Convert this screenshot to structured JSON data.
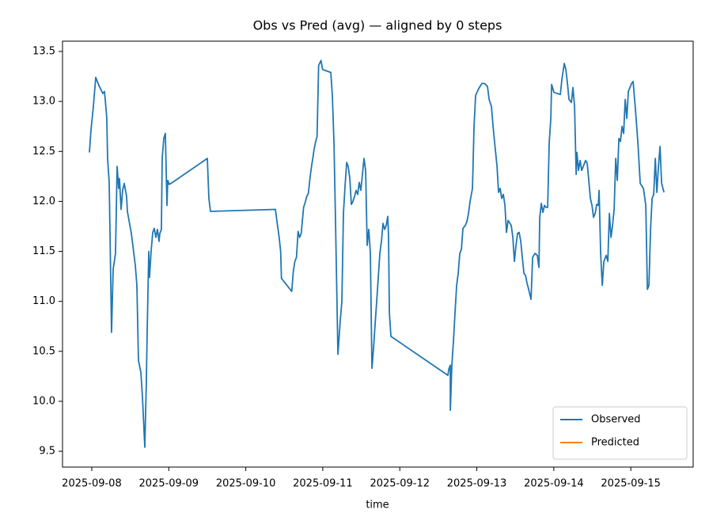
{
  "chart_data": {
    "type": "line",
    "title": "Obs vs Pred (avg) — aligned by 0 steps",
    "x_label": "time",
    "x": [
      "2025-09-07 23:16",
      "2025-09-07 23:45",
      "2025-09-08 00:30",
      "2025-09-08 01:14",
      "2025-09-08 02:13",
      "2025-09-08 03:27",
      "2025-09-08 03:57",
      "2025-09-08 04:12",
      "2025-09-08 04:41",
      "2025-09-08 04:56",
      "2025-09-08 05:26",
      "2025-09-08 06:10",
      "2025-09-08 06:40",
      "2025-09-08 07:24",
      "2025-09-08 07:54",
      "2025-09-08 08:23",
      "2025-09-08 08:38",
      "2025-09-08 09:08",
      "2025-09-08 09:37",
      "2025-09-08 10:07",
      "2025-09-08 10:51",
      "2025-09-08 11:06",
      "2025-09-08 12:20",
      "2025-09-08 13:34",
      "2025-09-08 14:04",
      "2025-09-08 14:33",
      "2025-09-08 15:18",
      "2025-09-08 15:47",
      "2025-09-08 16:32",
      "2025-09-08 17:01",
      "2025-09-08 17:16",
      "2025-09-08 17:46",
      "2025-09-08 18:00",
      "2025-09-08 18:30",
      "2025-09-08 19:00",
      "2025-09-08 19:29",
      "2025-09-08 19:59",
      "2025-09-08 20:28",
      "2025-09-08 20:58",
      "2025-09-08 21:13",
      "2025-09-08 21:42",
      "2025-09-08 21:57",
      "2025-09-08 22:27",
      "2025-09-08 22:56",
      "2025-09-08 23:26",
      "2025-09-08 23:41",
      "2025-09-09 00:10",
      "2025-09-09 01:10",
      "2025-09-09 12:01",
      "2025-09-09 12:30",
      "2025-09-09 13:00",
      "2025-09-10 09:14",
      "2025-09-10 09:53",
      "2025-09-10 10:22",
      "2025-09-10 10:52",
      "2025-09-10 11:07",
      "2025-09-10 14:19",
      "2025-09-10 14:49",
      "2025-09-10 15:18",
      "2025-09-10 15:48",
      "2025-09-10 16:18",
      "2025-09-10 16:47",
      "2025-09-10 17:17",
      "2025-09-10 18:01",
      "2025-09-10 18:31",
      "2025-09-10 19:00",
      "2025-09-10 19:30",
      "2025-09-10 20:00",
      "2025-09-10 20:29",
      "2025-09-10 20:59",
      "2025-09-10 21:14",
      "2025-09-10 21:43",
      "2025-09-10 22:13",
      "2025-09-10 22:42",
      "2025-09-10 23:27",
      "2025-09-10 23:56",
      "2025-09-11 02:30",
      "2025-09-11 02:59",
      "2025-09-11 03:29",
      "2025-09-11 03:58",
      "2025-09-11 04:43",
      "2025-09-11 05:27",
      "2025-09-11 05:57",
      "2025-09-11 06:26",
      "2025-09-11 06:56",
      "2025-09-11 07:26",
      "2025-09-11 07:55",
      "2025-09-11 08:25",
      "2025-09-11 08:54",
      "2025-09-11 09:24",
      "2025-09-11 09:54",
      "2025-09-11 10:23",
      "2025-09-11 10:53",
      "2025-09-11 11:22",
      "2025-09-11 11:52",
      "2025-09-11 12:51",
      "2025-09-11 13:21",
      "2025-09-11 13:50",
      "2025-09-11 14:20",
      "2025-09-11 14:50",
      "2025-09-11 15:19",
      "2025-09-11 15:49",
      "2025-09-11 16:18",
      "2025-09-11 16:48",
      "2025-09-11 17:18",
      "2025-09-11 17:47",
      "2025-09-11 18:17",
      "2025-09-11 18:46",
      "2025-09-11 19:16",
      "2025-09-11 19:46",
      "2025-09-11 20:15",
      "2025-09-11 20:30",
      "2025-09-11 20:45",
      "2025-09-11 21:14",
      "2025-09-12 15:00",
      "2025-09-12 15:15",
      "2025-09-12 15:44",
      "2025-09-12 15:45",
      "2025-09-12 16:14",
      "2025-09-12 16:44",
      "2025-09-12 17:13",
      "2025-09-12 17:43",
      "2025-09-12 18:12",
      "2025-09-12 18:42",
      "2025-09-12 19:12",
      "2025-09-12 19:41",
      "2025-09-12 20:26",
      "2025-09-12 20:55",
      "2025-09-12 21:25",
      "2025-09-12 21:54",
      "2025-09-12 22:39",
      "2025-09-12 23:08",
      "2025-09-12 23:38",
      "2025-09-13 00:37",
      "2025-09-13 01:36",
      "2025-09-13 02:21",
      "2025-09-13 03:20",
      "2025-09-13 03:50",
      "2025-09-13 04:34",
      "2025-09-13 05:04",
      "2025-09-13 05:33",
      "2025-09-13 06:18",
      "2025-09-13 06:47",
      "2025-09-13 07:17",
      "2025-09-13 07:46",
      "2025-09-13 08:16",
      "2025-09-13 08:46",
      "2025-09-13 09:15",
      "2025-09-13 09:45",
      "2025-09-13 10:44",
      "2025-09-13 11:14",
      "2025-09-13 11:43",
      "2025-09-13 12:13",
      "2025-09-13 12:42",
      "2025-09-13 13:12",
      "2025-09-13 13:42",
      "2025-09-13 14:11",
      "2025-09-13 14:41",
      "2025-09-13 15:10",
      "2025-09-13 15:40",
      "2025-09-13 16:10",
      "2025-09-13 16:54",
      "2025-09-13 17:24",
      "2025-09-13 18:08",
      "2025-09-13 18:52",
      "2025-09-13 19:22",
      "2025-09-13 19:37",
      "2025-09-13 20:06",
      "2025-09-13 20:36",
      "2025-09-13 21:06",
      "2025-09-13 21:35",
      "2025-09-13 22:05",
      "2025-09-13 22:34",
      "2025-09-13 23:04",
      "2025-09-13 23:19",
      "2025-09-14 00:03",
      "2025-09-14 02:02",
      "2025-09-14 02:31",
      "2025-09-14 03:16",
      "2025-09-14 03:45",
      "2025-09-14 04:15",
      "2025-09-14 04:44",
      "2025-09-14 05:29",
      "2025-09-14 05:58",
      "2025-09-14 06:28",
      "2025-09-14 06:58",
      "2025-09-14 07:12",
      "2025-09-14 07:42",
      "2025-09-14 08:12",
      "2025-09-14 08:41",
      "2025-09-14 09:11",
      "2025-09-14 09:55",
      "2025-09-14 10:25",
      "2025-09-14 10:54",
      "2025-09-14 11:24",
      "2025-09-14 11:54",
      "2025-09-14 12:23",
      "2025-09-14 12:53",
      "2025-09-14 13:22",
      "2025-09-14 13:52",
      "2025-09-14 14:07",
      "2025-09-14 14:36",
      "2025-09-14 15:06",
      "2025-09-14 15:36",
      "2025-09-14 16:20",
      "2025-09-14 16:50",
      "2025-09-14 17:19",
      "2025-09-14 17:49",
      "2025-09-14 18:18",
      "2025-09-14 18:48",
      "2025-09-14 19:18",
      "2025-09-14 19:47",
      "2025-09-14 20:17",
      "2025-09-14 20:46",
      "2025-09-14 21:16",
      "2025-09-14 21:46",
      "2025-09-14 22:15",
      "2025-09-14 22:45",
      "2025-09-14 23:14",
      "2025-09-15 00:14",
      "2025-09-15 00:43",
      "2025-09-15 01:28",
      "2025-09-15 02:12",
      "2025-09-15 02:56",
      "2025-09-15 03:56",
      "2025-09-15 04:40",
      "2025-09-15 05:10",
      "2025-09-15 05:39",
      "2025-09-15 06:09",
      "2025-09-15 06:38",
      "2025-09-15 07:08",
      "2025-09-15 07:38",
      "2025-09-15 08:07",
      "2025-09-15 08:37",
      "2025-09-15 09:06",
      "2025-09-15 09:36",
      "2025-09-15 10:20"
    ],
    "series": [
      {
        "name": "Observed",
        "color": "#1f77b4",
        "values": [
          12.49,
          12.71,
          12.95,
          13.24,
          13.16,
          13.08,
          13.1,
          13.02,
          12.83,
          12.43,
          12.19,
          10.69,
          11.32,
          11.48,
          12.35,
          12.13,
          12.23,
          11.92,
          12.11,
          12.18,
          12.05,
          11.9,
          11.68,
          11.36,
          11.16,
          10.41,
          10.29,
          10.05,
          9.54,
          10.21,
          10.69,
          11.5,
          11.24,
          11.5,
          11.69,
          11.73,
          11.64,
          11.72,
          11.6,
          11.68,
          11.72,
          12.43,
          12.63,
          12.68,
          11.96,
          12.21,
          12.17,
          12.19,
          12.43,
          12.03,
          11.9,
          11.92,
          11.76,
          11.65,
          11.5,
          11.23,
          11.1,
          11.3,
          11.4,
          11.44,
          11.7,
          11.64,
          11.68,
          11.94,
          11.99,
          12.05,
          12.08,
          12.23,
          12.35,
          12.45,
          12.51,
          12.59,
          12.65,
          13.36,
          13.41,
          13.32,
          13.29,
          13.06,
          12.59,
          11.8,
          10.47,
          10.81,
          11.0,
          11.88,
          12.15,
          12.39,
          12.35,
          12.23,
          11.97,
          12.0,
          12.05,
          12.11,
          12.07,
          12.19,
          12.11,
          12.43,
          12.31,
          11.56,
          11.72,
          11.48,
          10.33,
          10.53,
          10.77,
          11.0,
          11.24,
          11.48,
          11.6,
          11.78,
          11.72,
          11.76,
          11.85,
          11.64,
          10.89,
          10.65,
          10.26,
          10.32,
          10.36,
          9.91,
          10.37,
          10.61,
          10.89,
          11.16,
          11.28,
          11.48,
          11.52,
          11.73,
          11.76,
          11.8,
          11.88,
          12.0,
          12.13,
          12.75,
          13.06,
          13.13,
          13.18,
          13.18,
          13.15,
          13.02,
          12.95,
          12.75,
          12.59,
          12.35,
          12.09,
          12.13,
          12.03,
          12.07,
          11.96,
          11.69,
          11.81,
          11.76,
          11.64,
          11.4,
          11.56,
          11.68,
          11.69,
          11.6,
          11.44,
          11.28,
          11.26,
          11.18,
          11.12,
          11.02,
          11.44,
          11.48,
          11.46,
          11.34,
          11.84,
          11.98,
          11.89,
          11.96,
          11.94,
          11.94,
          12.59,
          12.83,
          13.17,
          13.09,
          13.07,
          13.22,
          13.38,
          13.32,
          13.18,
          13.02,
          12.99,
          13.14,
          12.95,
          12.27,
          12.49,
          12.31,
          12.41,
          12.31,
          12.35,
          12.41,
          12.38,
          12.21,
          12.03,
          11.96,
          11.84,
          11.88,
          11.97,
          11.96,
          12.11,
          11.48,
          11.16,
          11.4,
          11.46,
          11.4,
          11.88,
          11.64,
          11.76,
          11.92,
          12.43,
          12.21,
          12.63,
          12.6,
          12.75,
          12.68,
          13.02,
          12.83,
          13.1,
          13.18,
          13.2,
          12.91,
          12.59,
          12.18,
          12.13,
          11.96,
          11.12,
          11.16,
          11.72,
          12.03,
          12.07,
          12.43,
          12.09,
          12.35,
          12.55,
          12.18,
          12.09
        ]
      },
      {
        "name": "Predicted",
        "color": "#ff7f0e",
        "values": [
          null,
          null,
          null,
          null,
          null,
          null,
          null,
          null,
          null,
          null,
          null,
          null,
          null,
          null,
          null,
          null,
          null,
          null,
          null,
          null,
          null,
          null,
          null,
          null,
          null,
          null,
          null,
          null,
          null,
          null,
          null,
          null,
          null,
          null,
          null,
          null,
          null,
          null,
          null,
          null,
          null,
          null,
          null,
          null,
          null,
          null,
          null,
          null,
          null,
          null,
          null,
          null,
          null,
          null,
          null,
          null,
          null,
          null,
          null,
          null,
          null,
          null,
          null,
          null,
          null,
          null,
          null,
          null,
          null,
          null,
          null,
          null,
          null,
          null,
          null,
          null,
          null,
          null,
          null,
          null,
          null,
          null,
          null,
          null,
          null,
          null,
          null,
          null,
          null,
          null,
          null,
          null,
          null,
          null,
          null,
          null,
          null,
          null,
          null,
          null,
          null,
          null,
          null,
          null,
          null,
          null,
          null,
          null,
          null,
          null,
          null,
          null,
          null,
          null,
          null,
          null,
          null,
          null,
          null,
          null,
          null,
          null,
          null,
          null,
          null,
          null,
          null,
          null,
          null,
          null,
          null,
          null,
          null,
          null,
          null,
          null,
          null,
          null,
          null,
          null,
          null,
          null,
          null,
          null,
          null,
          null,
          null,
          null,
          null,
          null,
          null,
          null,
          null,
          null,
          null,
          null,
          null,
          null,
          null,
          null,
          null,
          null,
          null,
          null,
          null,
          null,
          null,
          null,
          null,
          null,
          null,
          null,
          null,
          null,
          null,
          null,
          null,
          null,
          null,
          null,
          null,
          null,
          null,
          null,
          null,
          null,
          null,
          null,
          null,
          null,
          null,
          null,
          null,
          null,
          null,
          null,
          null,
          null,
          null,
          null,
          null,
          null,
          null,
          null,
          null,
          null,
          null,
          null,
          null,
          null,
          null,
          null,
          null,
          null,
          null,
          null,
          null,
          null,
          null,
          null,
          null,
          null,
          null,
          null,
          null,
          null,
          null,
          null,
          null,
          null,
          null,
          null,
          null,
          null,
          null,
          null,
          null
        ]
      }
    ],
    "xlim": [
      "2025-09-07 14:53",
      "2025-09-15 19:26"
    ],
    "xticks": [
      "2025-09-08",
      "2025-09-09",
      "2025-09-10",
      "2025-09-11",
      "2025-09-12",
      "2025-09-13",
      "2025-09-14",
      "2025-09-15"
    ],
    "ylim": [
      9.342,
      13.603
    ],
    "yticks": [
      9.5,
      {
        "value": 10,
        "label": "10.0"
      },
      10.5,
      {
        "value": 11,
        "label": "11.0"
      },
      11.5,
      {
        "value": 12,
        "label": "12.0"
      },
      12.5,
      {
        "value": 13,
        "label": "13.0"
      },
      13.5
    ],
    "grid": false,
    "legend": "lower right"
  }
}
